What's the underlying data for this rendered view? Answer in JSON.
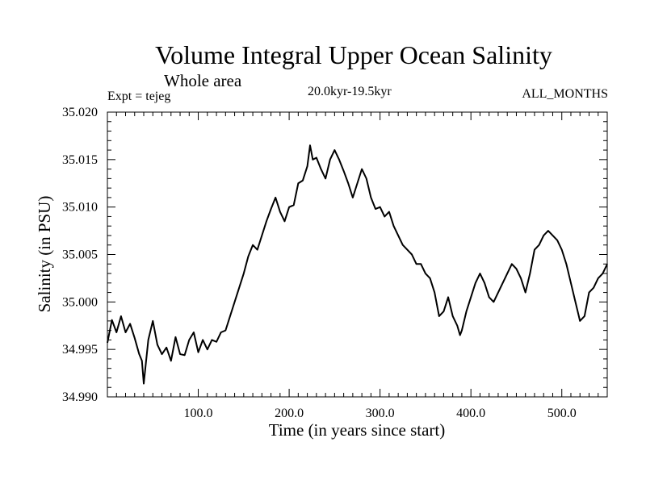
{
  "chart_data": {
    "type": "line",
    "title": "Volume Integral Upper Ocean Salinity",
    "subtitle": "Whole area",
    "experiment_label": "Expt = tejeg",
    "period_label": "20.0kyr-19.5kyr",
    "months_label": "ALL_MONTHS",
    "xlabel": "Time (in years since start)",
    "ylabel": "Salinity (in PSU)",
    "xlim": [
      0,
      550
    ],
    "ylim": [
      34.99,
      35.02
    ],
    "x_ticks": [
      100,
      200,
      300,
      400,
      500
    ],
    "x_tick_labels": [
      "100.0",
      "200.0",
      "300.0",
      "400.0",
      "500.0"
    ],
    "y_ticks": [
      34.99,
      34.995,
      35.0,
      35.005,
      35.01,
      35.015,
      35.02
    ],
    "y_tick_labels": [
      "34.990",
      "34.995",
      "35.000",
      "35.005",
      "35.010",
      "35.015",
      "35.020"
    ],
    "grid": false,
    "series": [
      {
        "name": "salinity",
        "color": "#000000",
        "x": [
          0,
          5,
          10,
          15,
          20,
          25,
          30,
          35,
          38,
          40,
          45,
          50,
          55,
          60,
          65,
          70,
          75,
          80,
          85,
          90,
          95,
          100,
          105,
          110,
          115,
          120,
          125,
          130,
          135,
          140,
          145,
          150,
          155,
          160,
          165,
          170,
          175,
          180,
          185,
          190,
          195,
          200,
          205,
          210,
          215,
          220,
          223,
          226,
          230,
          235,
          240,
          245,
          250,
          255,
          260,
          265,
          270,
          275,
          280,
          285,
          290,
          295,
          300,
          305,
          310,
          315,
          320,
          325,
          330,
          335,
          340,
          345,
          350,
          355,
          360,
          365,
          370,
          375,
          380,
          385,
          388,
          390,
          395,
          400,
          405,
          410,
          415,
          420,
          425,
          430,
          435,
          440,
          445,
          450,
          455,
          460,
          465,
          470,
          475,
          480,
          485,
          490,
          495,
          500,
          505,
          510,
          515,
          520,
          525,
          530,
          535,
          540,
          545,
          550
        ],
        "values": [
          34.9957,
          34.9981,
          34.9968,
          34.9985,
          34.9968,
          34.9977,
          34.9962,
          34.9945,
          34.9938,
          34.9914,
          34.996,
          34.998,
          34.9955,
          34.9945,
          34.9952,
          34.9938,
          34.9963,
          34.9945,
          34.9944,
          34.996,
          34.9968,
          34.9947,
          34.996,
          34.995,
          34.996,
          34.9958,
          34.9968,
          34.997,
          34.9985,
          35.0,
          35.0015,
          35.003,
          35.0048,
          35.006,
          35.0055,
          35.007,
          35.0085,
          35.0098,
          35.011,
          35.0095,
          35.0085,
          35.01,
          35.0102,
          35.0125,
          35.0128,
          35.0143,
          35.0165,
          35.015,
          35.0152,
          35.014,
          35.013,
          35.015,
          35.016,
          35.015,
          35.0138,
          35.0125,
          35.011,
          35.0125,
          35.014,
          35.013,
          35.011,
          35.0098,
          35.01,
          35.009,
          35.0095,
          35.008,
          35.007,
          35.006,
          35.0055,
          35.005,
          35.004,
          35.004,
          35.003,
          35.0025,
          35.001,
          34.9985,
          34.999,
          35.0005,
          34.9985,
          34.9975,
          34.9965,
          34.997,
          34.999,
          35.0005,
          35.002,
          35.003,
          35.002,
          35.0005,
          35.0,
          35.001,
          35.002,
          35.003,
          35.004,
          35.0035,
          35.0025,
          35.001,
          35.003,
          35.0055,
          35.006,
          35.007,
          35.0075,
          35.007,
          35.0065,
          35.0055,
          35.004,
          35.002,
          35.0,
          34.998,
          34.9985,
          35.001,
          35.0015,
          35.0025,
          35.003,
          35.004
        ]
      }
    ]
  }
}
